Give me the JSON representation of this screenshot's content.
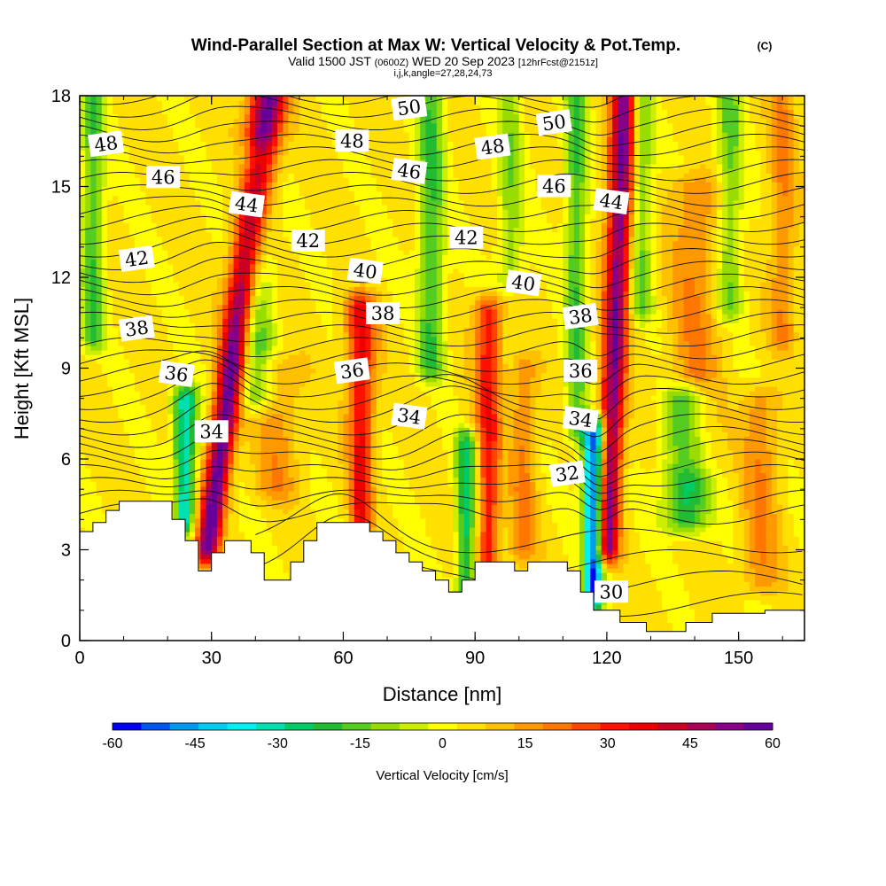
{
  "header": {
    "title": "Wind-Parallel Section at Max W: Vertical Velocity & Pot.Temp.",
    "copyright": "(C)",
    "valid_a": "Valid 1500 JST",
    "valid_utc": "(0600Z)",
    "valid_b": "WED 20 Sep 2023",
    "forecast": "[12hrFcst@2151z]",
    "indices": "i,j,k,angle=27,28,24,73"
  },
  "chart_data": {
    "type": "heatmap",
    "xlabel": "Distance [nm]",
    "ylabel": "Height [Kft MSL]",
    "xlim": [
      0,
      165
    ],
    "ylim": [
      0,
      18
    ],
    "xticks": [
      0,
      30,
      60,
      90,
      120,
      150
    ],
    "yticks": [
      0,
      3,
      6,
      9,
      12,
      15,
      18
    ],
    "colorbar": {
      "label": "Vertical Velocity [cm/s]",
      "range": [
        -60,
        60
      ],
      "ticks": [
        -60,
        -45,
        -30,
        -15,
        0,
        15,
        30,
        45,
        60
      ],
      "colors": [
        "#0000f0",
        "#0055f0",
        "#0099f0",
        "#00ccf0",
        "#00f0f0",
        "#00e0b0",
        "#00cc66",
        "#22bb33",
        "#55cc22",
        "#99dd00",
        "#ccee00",
        "#ffff00",
        "#ffe000",
        "#ffc000",
        "#ff9900",
        "#ff7700",
        "#ff4400",
        "#ff1100",
        "#ee0000",
        "#cc0022",
        "#aa0055",
        "#880088",
        "#660099"
      ]
    },
    "theta_labels": [
      {
        "value": "48",
        "x": 6,
        "y": 16.4
      },
      {
        "value": "46",
        "x": 19,
        "y": 15.3
      },
      {
        "value": "44",
        "x": 38,
        "y": 14.4
      },
      {
        "value": "42",
        "x": 13,
        "y": 12.6
      },
      {
        "value": "42",
        "x": 52,
        "y": 13.2
      },
      {
        "value": "40",
        "x": 65,
        "y": 12.2
      },
      {
        "value": "38",
        "x": 13,
        "y": 10.3
      },
      {
        "value": "38",
        "x": 69,
        "y": 10.8
      },
      {
        "value": "36",
        "x": 22,
        "y": 8.8
      },
      {
        "value": "36",
        "x": 62,
        "y": 8.9
      },
      {
        "value": "34",
        "x": 30,
        "y": 6.9
      },
      {
        "value": "34",
        "x": 75,
        "y": 7.4
      },
      {
        "value": "50",
        "x": 75,
        "y": 17.6
      },
      {
        "value": "48",
        "x": 62,
        "y": 16.5
      },
      {
        "value": "46",
        "x": 75,
        "y": 15.5
      },
      {
        "value": "48",
        "x": 94,
        "y": 16.3
      },
      {
        "value": "42",
        "x": 88,
        "y": 13.3
      },
      {
        "value": "40",
        "x": 101,
        "y": 11.8
      },
      {
        "value": "50",
        "x": 108,
        "y": 17.1
      },
      {
        "value": "46",
        "x": 108,
        "y": 15.0
      },
      {
        "value": "44",
        "x": 121,
        "y": 14.5
      },
      {
        "value": "38",
        "x": 114,
        "y": 10.7
      },
      {
        "value": "36",
        "x": 114,
        "y": 8.9
      },
      {
        "value": "34",
        "x": 114,
        "y": 7.3
      },
      {
        "value": "32",
        "x": 111,
        "y": 5.5
      },
      {
        "value": "30",
        "x": 121,
        "y": 1.6
      }
    ],
    "updrafts": [
      {
        "x": 29,
        "amp": 55,
        "wtop": 4,
        "wbot": 2.5,
        "lean": 14,
        "base": 3,
        "top": 18
      },
      {
        "x": 64,
        "amp": 32,
        "wtop": 3.5,
        "wbot": 2,
        "lean": 0,
        "base": 2.5,
        "top": 11
      },
      {
        "x": 93,
        "amp": 28,
        "wtop": 3,
        "wbot": 2.5,
        "lean": 0,
        "base": 2.5,
        "top": 11
      },
      {
        "x": 120,
        "amp": 50,
        "wtop": 3,
        "wbot": 2.5,
        "lean": 4,
        "base": 3,
        "top": 18
      },
      {
        "x": 101,
        "amp": 15,
        "wtop": 3,
        "wbot": 3,
        "lean": 0,
        "base": 3,
        "top": 9
      },
      {
        "x": 45,
        "amp": 12,
        "wtop": 5,
        "wbot": 5,
        "lean": 0,
        "base": 5,
        "top": 9
      },
      {
        "x": 140,
        "amp": 14,
        "wtop": 6,
        "wbot": 5,
        "lean": 0,
        "base": 6,
        "top": 15
      },
      {
        "x": 155,
        "amp": 14,
        "wtop": 4,
        "wbot": 4,
        "lean": 0,
        "base": 2,
        "top": 8
      },
      {
        "x": 160,
        "amp": 14,
        "wtop": 3,
        "wbot": 3,
        "lean": 0,
        "base": 10,
        "top": 18
      }
    ],
    "downdrafts": [
      {
        "x": 24,
        "amp": -38,
        "wtop": 3,
        "wbot": 2,
        "lean": 0,
        "base": 4,
        "top": 8
      },
      {
        "x": 117,
        "amp": -60,
        "wtop": 2.5,
        "wbot": 2,
        "lean": 0,
        "base": 1.5,
        "top": 7
      },
      {
        "x": 88,
        "amp": -30,
        "wtop": 2.5,
        "wbot": 2,
        "lean": 0,
        "base": 1.5,
        "top": 6.5
      },
      {
        "x": 80,
        "amp": -22,
        "wtop": 3,
        "wbot": 3,
        "lean": 0,
        "base": 9,
        "top": 18
      },
      {
        "x": 40,
        "amp": -20,
        "wtop": 4,
        "wbot": 4,
        "lean": 0,
        "base": 8,
        "top": 16
      },
      {
        "x": 113,
        "amp": -22,
        "wtop": 2.5,
        "wbot": 2.5,
        "lean": 0,
        "base": 7,
        "top": 18
      },
      {
        "x": 3,
        "amp": -22,
        "wtop": 2.5,
        "wbot": 2.5,
        "lean": 0,
        "base": 10,
        "top": 18
      },
      {
        "x": 138,
        "amp": -30,
        "wtop": 5,
        "wbot": 5,
        "lean": 0,
        "base": 4,
        "top": 8
      },
      {
        "x": 128,
        "amp": -18,
        "wtop": 2.5,
        "wbot": 2.5,
        "lean": 0,
        "base": 11,
        "top": 18
      },
      {
        "x": 148,
        "amp": -18,
        "wtop": 3,
        "wbot": 3,
        "lean": 0,
        "base": 11,
        "top": 18
      },
      {
        "x": 98,
        "amp": -15,
        "wtop": 3,
        "wbot": 3,
        "lean": 0,
        "base": 12,
        "top": 18
      }
    ],
    "terrain": [
      [
        0,
        3.6
      ],
      [
        3,
        3.6
      ],
      [
        3,
        3.9
      ],
      [
        6,
        3.9
      ],
      [
        6,
        4.3
      ],
      [
        9,
        4.3
      ],
      [
        9,
        4.6
      ],
      [
        21,
        4.6
      ],
      [
        21,
        4.0
      ],
      [
        24,
        4.0
      ],
      [
        24,
        3.3
      ],
      [
        27,
        3.3
      ],
      [
        27,
        2.3
      ],
      [
        30,
        2.3
      ],
      [
        30,
        2.9
      ],
      [
        33,
        2.9
      ],
      [
        33,
        3.3
      ],
      [
        39,
        3.3
      ],
      [
        39,
        2.9
      ],
      [
        42,
        2.9
      ],
      [
        42,
        2.0
      ],
      [
        48,
        2.0
      ],
      [
        48,
        2.6
      ],
      [
        51,
        2.6
      ],
      [
        51,
        3.3
      ],
      [
        54,
        3.3
      ],
      [
        54,
        3.9
      ],
      [
        66,
        3.9
      ],
      [
        66,
        3.6
      ],
      [
        69,
        3.6
      ],
      [
        69,
        3.3
      ],
      [
        72,
        3.3
      ],
      [
        72,
        2.9
      ],
      [
        75,
        2.9
      ],
      [
        75,
        2.6
      ],
      [
        78,
        2.6
      ],
      [
        78,
        2.3
      ],
      [
        81,
        2.3
      ],
      [
        81,
        2.0
      ],
      [
        84,
        2.0
      ],
      [
        84,
        1.6
      ],
      [
        87,
        1.6
      ],
      [
        87,
        2.0
      ],
      [
        90,
        2.0
      ],
      [
        90,
        2.6
      ],
      [
        99,
        2.6
      ],
      [
        99,
        2.3
      ],
      [
        102,
        2.3
      ],
      [
        102,
        2.6
      ],
      [
        111,
        2.6
      ],
      [
        111,
        2.3
      ],
      [
        114,
        2.3
      ],
      [
        114,
        1.6
      ],
      [
        117,
        1.6
      ],
      [
        117,
        1.0
      ],
      [
        123,
        1.0
      ],
      [
        123,
        0.6
      ],
      [
        129,
        0.6
      ],
      [
        129,
        0.3
      ],
      [
        138,
        0.3
      ],
      [
        138,
        0.6
      ],
      [
        144,
        0.6
      ],
      [
        144,
        0.9
      ],
      [
        156,
        0.9
      ],
      [
        156,
        1.0
      ],
      [
        165,
        1.0
      ]
    ]
  }
}
